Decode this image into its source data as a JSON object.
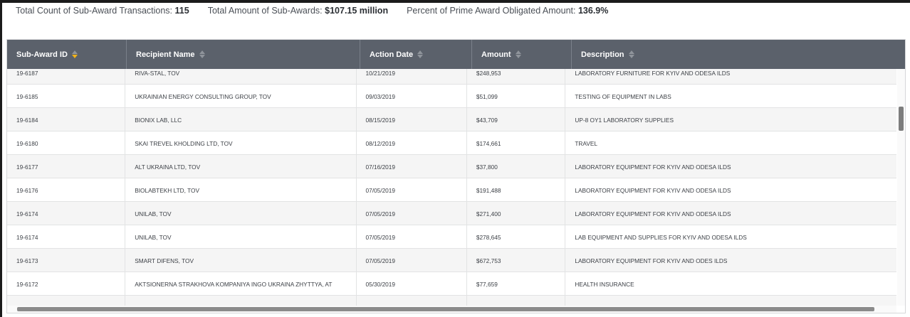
{
  "summary": {
    "count_label": "Total Count of Sub-Award Transactions:",
    "count_value": "115",
    "amount_label": "Total Amount of Sub-Awards:",
    "amount_value": "$107.15 million",
    "percent_label": "Percent of Prime Award Obligated Amount:",
    "percent_value": "136.9%"
  },
  "table": {
    "columns": [
      "Sub-Award ID",
      "Recipient Name",
      "Action Date",
      "Amount",
      "Description"
    ],
    "sorted_column": "Sub-Award ID",
    "sort_color": "#f2b318",
    "header_bg": "#5b616b",
    "rows": [
      [
        "19-6187",
        "RIVA-STAL, TOV",
        "10/21/2019",
        "$248,953",
        "LABORATORY FURNITURE FOR KYIV AND ODESA ILDS"
      ],
      [
        "19-6185",
        "UKRAINIAN ENERGY CONSULTING GROUP, TOV",
        "09/03/2019",
        "$51,099",
        "TESTING OF EQUIPMENT IN LABS"
      ],
      [
        "19-6184",
        "BIONIX LAB, LLC",
        "08/15/2019",
        "$43,709",
        "UP-8 OY1 LABORATORY SUPPLIES"
      ],
      [
        "19-6180",
        "SKAI TREVEL KHOLDING LTD, TOV",
        "08/12/2019",
        "$174,661",
        "TRAVEL"
      ],
      [
        "19-6177",
        "ALT UKRAINA LTD, TOV",
        "07/16/2019",
        "$37,800",
        "LABORATORY EQUIPMENT FOR KYIV AND ODESA ILDS"
      ],
      [
        "19-6176",
        "BIOLABTEKH LTD, TOV",
        "07/05/2019",
        "$191,488",
        "LABORATORY EQUIPMENT FOR KYIV AND ODESA ILDS"
      ],
      [
        "19-6174",
        "UNILAB, TOV",
        "07/05/2019",
        "$271,400",
        "LABORATORY EQUIPMENT FOR KYIV AND ODESA ILDS"
      ],
      [
        "19-6174",
        "UNILAB, TOV",
        "07/05/2019",
        "$278,645",
        "LAB EQUIPMENT AND SUPPLIES FOR KYIV AND ODESA ILDS"
      ],
      [
        "19-6173",
        "SMART DIFENS, TOV",
        "07/05/2019",
        "$672,753",
        "LABORATORY EQUIPMENT FOR KYIV AND ODES ILDS"
      ],
      [
        "19-6172",
        "AKTSIONERNA STRAKHOVA KOMPANIYA INGO UKRAINA ZHYTTYA, AT",
        "05/30/2019",
        "$77,659",
        "HEALTH INSURANCE"
      ],
      [
        "",
        "",
        "",
        "",
        ""
      ]
    ]
  }
}
